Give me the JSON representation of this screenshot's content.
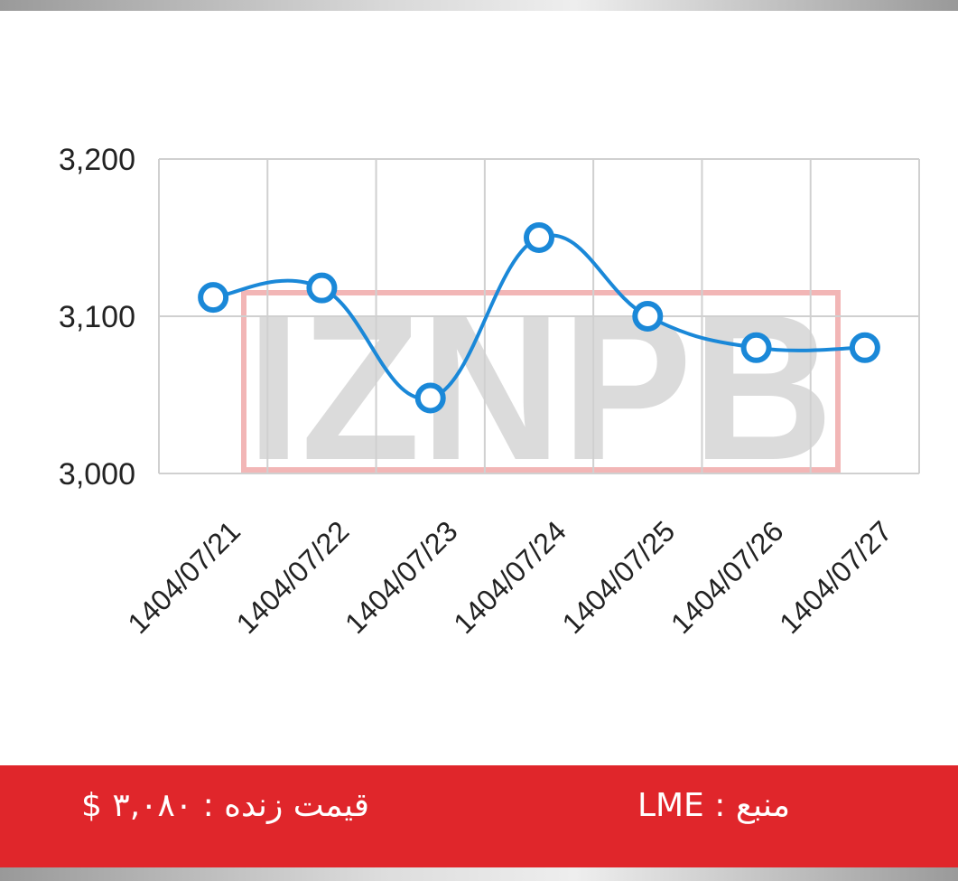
{
  "chart_data": {
    "type": "line",
    "watermark": "IZNPB",
    "categories": [
      "1404/07/21",
      "1404/07/22",
      "1404/07/23",
      "1404/07/24",
      "1404/07/25",
      "1404/07/26",
      "1404/07/27"
    ],
    "values": [
      3112,
      3118,
      3048,
      3150,
      3100,
      3080,
      3080
    ],
    "color": "#1a88d8",
    "ylim": [
      3000,
      3200
    ],
    "yticks": [
      {
        "value": 3000,
        "label": "3,000"
      },
      {
        "value": 3100,
        "label": "3,100"
      },
      {
        "value": 3200,
        "label": "3,200"
      }
    ],
    "grid": true
  },
  "footer": {
    "price": "قیمت زنده : ۳,۰۸۰ $",
    "source": "منبع : LME"
  }
}
